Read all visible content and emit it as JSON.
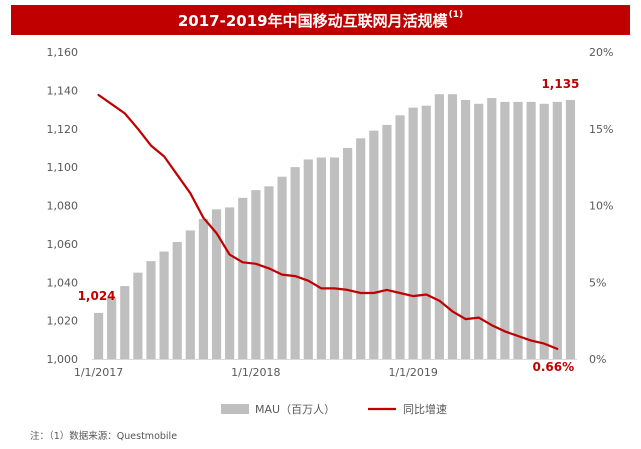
{
  "title": {
    "text": "2017-2019年中国移动互联网月活规模",
    "footnote_mark": "(1)"
  },
  "note": "注：（1）数据来源：Questmobile",
  "colors": {
    "bar": "#bfbfbf",
    "line": "#c00000",
    "title_bg": "#c00000",
    "axis_text": "#595959",
    "grid": "#d9d9d9"
  },
  "chart_data": {
    "type": "bar",
    "combo": "bar+line",
    "title": "2017-2019年中国移动互联网月活规模",
    "x_tick_labels": [
      "1/1/2017",
      "1/1/2018",
      "1/1/2019"
    ],
    "x_tick_months": [
      0,
      12,
      24
    ],
    "left_axis": {
      "ylim": [
        1000,
        1160
      ],
      "ticks": [
        1000,
        1020,
        1040,
        1060,
        1080,
        1100,
        1120,
        1140,
        1160
      ],
      "tick_labels": [
        "1,000",
        "1,020",
        "1,040",
        "1,060",
        "1,080",
        "1,100",
        "1,120",
        "1,140",
        "1,160"
      ]
    },
    "right_axis": {
      "ylim": [
        0,
        20
      ],
      "ticks": [
        0,
        5,
        10,
        15,
        20
      ],
      "tick_labels": [
        "0%",
        "5%",
        "10%",
        "15%",
        "20%"
      ]
    },
    "series": [
      {
        "name": "MAU（百万人）",
        "type": "bar",
        "axis": "left",
        "values": [
          1024,
          1032,
          1038,
          1045,
          1051,
          1056,
          1061,
          1067,
          1073,
          1078,
          1079,
          1084,
          1088,
          1090,
          1095,
          1100,
          1104,
          1105,
          1105,
          1110,
          1115,
          1119,
          1122,
          1127,
          1131,
          1132,
          1138,
          1138,
          1135,
          1133,
          1136,
          1134,
          1134,
          1134,
          1133,
          1134,
          1135
        ]
      },
      {
        "name": "同比增速",
        "type": "line",
        "axis": "right",
        "values": [
          17.2,
          16.6,
          16.0,
          15.0,
          13.9,
          13.2,
          12.0,
          10.8,
          9.2,
          8.2,
          6.8,
          6.3,
          6.2,
          5.9,
          5.5,
          5.4,
          5.1,
          4.6,
          4.6,
          4.5,
          4.3,
          4.3,
          4.5,
          4.3,
          4.1,
          4.2,
          3.8,
          3.1,
          2.6,
          2.7,
          2.2,
          1.8,
          1.5,
          1.2,
          1.0,
          0.66
        ]
      }
    ],
    "annotations": [
      {
        "label": "1,024",
        "series": 0,
        "index": 0
      },
      {
        "label": "1,135",
        "series": 0,
        "index": 36
      },
      {
        "label": "0.66%",
        "series": 1,
        "index": 35
      }
    ],
    "legend": {
      "position": "bottom",
      "entries": [
        "MAU（百万人）",
        "同比增速"
      ]
    },
    "grid": false
  }
}
